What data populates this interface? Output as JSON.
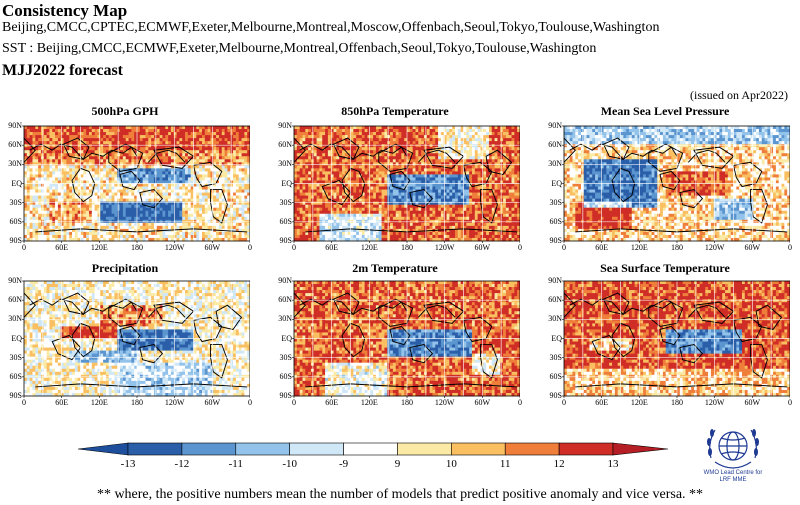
{
  "header": {
    "title": "Consistency Map",
    "models_line": "Beijing,CMCC,CPTEC,ECMWF,Exeter,Melbourne,Montreal,Moscow,Offenbach,Seoul,Tokyo,Toulouse,Washington",
    "sst_line": "SST : Beijing,CMCC,ECMWF,Exeter,Melbourne,Montreal,Offenbach,Seoul,Tokyo,Toulouse,Washington",
    "period": "MJJ2022 forecast",
    "issued": "(issued on Apr2022)"
  },
  "panels": [
    {
      "title": "500hPa GPH",
      "pattern": "gph"
    },
    {
      "title": "850hPa Temperature",
      "pattern": "t850"
    },
    {
      "title": "Mean Sea Level Pressure",
      "pattern": "mslp"
    },
    {
      "title": "Precipitation",
      "pattern": "precip"
    },
    {
      "title": "2m Temperature",
      "pattern": "t2m"
    },
    {
      "title": "Sea Surface Temperature",
      "pattern": "sst"
    }
  ],
  "axes": {
    "lat_labels": [
      "90N",
      "60N",
      "30N",
      "EQ",
      "30S",
      "60S",
      "90S"
    ],
    "lon_labels": [
      "0",
      "60E",
      "120E",
      "180",
      "120W",
      "60W",
      "0"
    ]
  },
  "colorbar": {
    "labels": [
      "-13",
      "-12",
      "-11",
      "-10",
      "-9",
      "9",
      "10",
      "11",
      "12",
      "13"
    ],
    "colors": [
      "#2a5ea8",
      "#5b95cf",
      "#93c3ea",
      "#cfe7f7",
      "#ffffff",
      "#fbeaa6",
      "#f9bf60",
      "#ef7e3a",
      "#cf2d26"
    ],
    "tail_low_color": "#1d4f9c",
    "tail_high_color": "#b41e24"
  },
  "footnote": "** where, the positive numbers mean the number of models that predict positive anomaly and vice versa. **",
  "logo": {
    "icon": "wmo-emblem-icon",
    "text": "WMO Lead Centre for\nLRF MME"
  }
}
